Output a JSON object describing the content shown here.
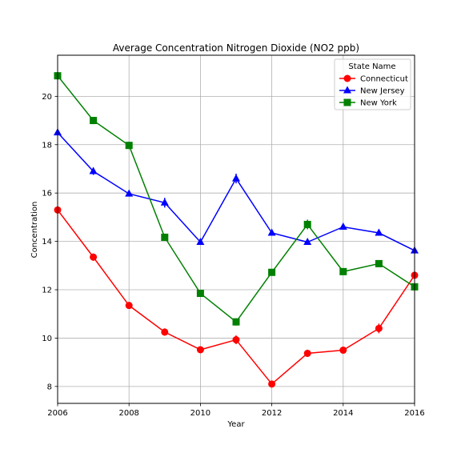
{
  "chart_data": {
    "type": "line",
    "title": "Average Concentration Nitrogen Dioxide (NO2 ppb)",
    "xlabel": "Year",
    "ylabel": "Concentration",
    "xlim": [
      2006,
      2016
    ],
    "ylim": [
      7.3,
      21.7
    ],
    "grid": true,
    "x_ticks": [
      "2006",
      "2008",
      "2010",
      "2012",
      "2014",
      "2016"
    ],
    "y_ticks": [
      "8",
      "10",
      "12",
      "14",
      "16",
      "18",
      "20"
    ],
    "legend": {
      "title": "State Name",
      "placement": "top-right"
    },
    "x": [
      2006,
      2007,
      2008,
      2009,
      2010,
      2011,
      2012,
      2013,
      2014,
      2015,
      2016
    ],
    "series": [
      {
        "name": "Connecticut",
        "color": "#ff0000",
        "marker": "circle",
        "values": [
          15.3,
          13.35,
          11.35,
          10.25,
          9.52,
          9.93,
          8.1,
          9.37,
          9.5,
          10.4,
          12.6
        ],
        "error": [
          0.05,
          0.15,
          0.1,
          0.15,
          0.05,
          0.18,
          0.08,
          0.15,
          0.05,
          0.2,
          0.1
        ]
      },
      {
        "name": "New Jersey",
        "color": "#0000ff",
        "marker": "triangle",
        "values": [
          18.5,
          16.9,
          15.97,
          15.6,
          13.97,
          16.6,
          14.35,
          13.97,
          14.6,
          14.35,
          13.62
        ],
        "error": [
          0.05,
          0.15,
          0.08,
          0.2,
          0.05,
          0.2,
          0.08,
          0.1,
          0.1,
          0.08,
          0.05
        ]
      },
      {
        "name": "New York",
        "color": "#008000",
        "marker": "square",
        "values": [
          20.85,
          19.0,
          17.97,
          14.17,
          11.85,
          10.67,
          12.72,
          14.7,
          12.75,
          13.08,
          12.12
        ],
        "error": [
          0.05,
          0.15,
          0.15,
          0.15,
          0.08,
          0.15,
          0.08,
          0.2,
          0.08,
          0.08,
          0.05
        ]
      }
    ]
  }
}
